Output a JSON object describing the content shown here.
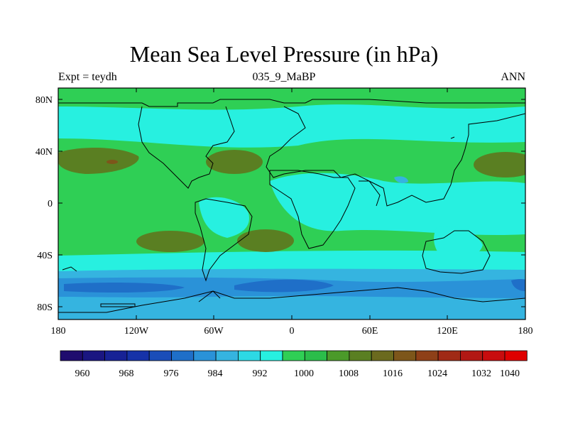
{
  "title": "Mean Sea Level Pressure (in hPa)",
  "subtitle_left": "Expt = teydh",
  "subtitle_center": "035_9_MaBP",
  "subtitle_right": "ANN",
  "x_ticks": [
    "180",
    "120W",
    "60W",
    "0",
    "60E",
    "120E",
    "180"
  ],
  "y_ticks": [
    "80N",
    "40N",
    "0",
    "40S",
    "80S"
  ],
  "colorbar": {
    "labels": [
      "960",
      "968",
      "976",
      "984",
      "992",
      "1000",
      "1008",
      "1016",
      "1024",
      "1032",
      "1040"
    ],
    "colors": [
      "#1f0c6e",
      "#1a1681",
      "#172295",
      "#1632a8",
      "#1a4db8",
      "#1f6fc8",
      "#2a92d8",
      "#35b4e0",
      "#2dd9e4",
      "#27f0e0",
      "#2fcf55",
      "#2bbd4a",
      "#4b9a2a",
      "#5a7f22",
      "#6b6a1e",
      "#7d561a",
      "#8e4018",
      "#a02a16",
      "#b21814",
      "#c80c0e",
      "#df0000"
    ]
  },
  "chart_data": {
    "type": "heatmap",
    "title": "Mean Sea Level Pressure (in hPa)",
    "variable": "Mean Sea Level Pressure",
    "units": "hPa",
    "experiment": "teydh",
    "period": "035_9_MaBP",
    "season": "ANN",
    "x_range": [
      -180,
      180
    ],
    "y_range": [
      -90,
      90
    ],
    "contour_levels": [
      960,
      964,
      968,
      972,
      976,
      980,
      984,
      988,
      992,
      996,
      1000,
      1004,
      1008,
      1012,
      1016,
      1020,
      1024,
      1028,
      1032,
      1036,
      1040
    ],
    "features": [
      {
        "name": "southern ocean low trough",
        "lat": -60,
        "value_hPa": 984
      },
      {
        "name": "south Atlantic high",
        "lat": -30,
        "lon": -20,
        "value_hPa": 1020
      },
      {
        "name": "south Pacific high",
        "lat": -30,
        "lon": -90,
        "value_hPa": 1020
      },
      {
        "name": "north Pacific high",
        "lat": 33,
        "lon": -140,
        "value_hPa": 1024
      },
      {
        "name": "north Atlantic high",
        "lat": 32,
        "lon": -45,
        "value_hPa": 1020
      },
      {
        "name": "western Pacific high",
        "lat": 30,
        "lon": 160,
        "value_hPa": 1020
      },
      {
        "name": "equatorial low belt",
        "lat": 0,
        "value_hPa": 1004
      }
    ]
  }
}
